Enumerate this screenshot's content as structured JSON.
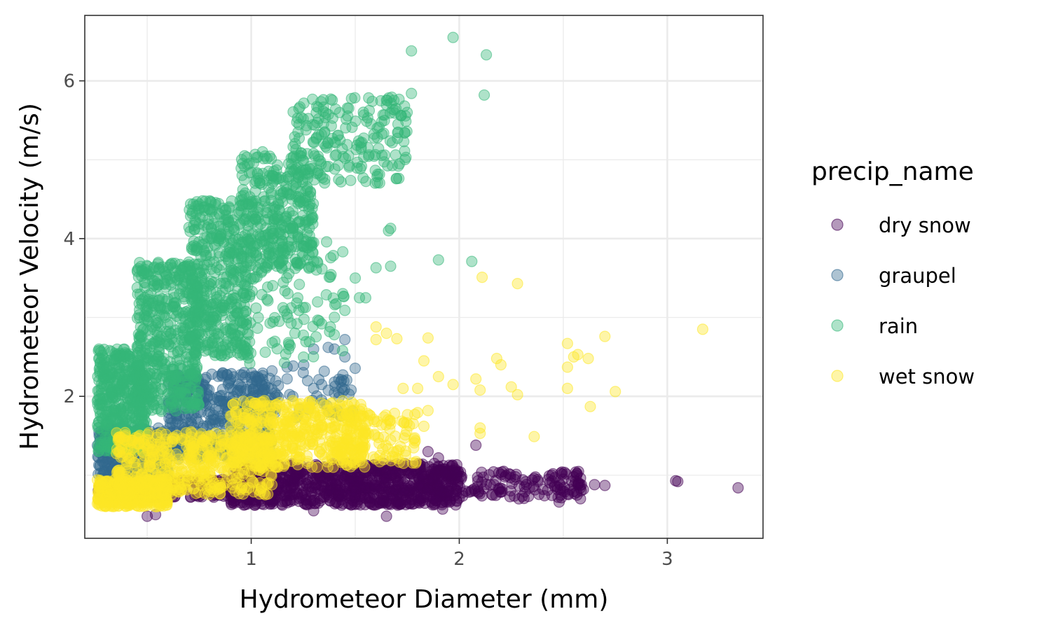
{
  "chart_data": {
    "type": "scatter",
    "title": "",
    "xlabel": "Hydrometeor Diameter (mm)",
    "ylabel": "Hydrometeor Velocity (m/s)",
    "xlim": [
      0.2,
      3.46
    ],
    "ylim": [
      0.2,
      6.83
    ],
    "x_ticks": [
      1,
      2,
      3
    ],
    "x_tick_labels": [
      "1",
      "2",
      "3"
    ],
    "y_ticks": [
      2,
      4,
      6
    ],
    "y_tick_labels": [
      "2",
      "4",
      "6"
    ],
    "grid": true,
    "legend_title": "precip_name",
    "legend_position": "right",
    "point_alpha": 0.4,
    "series": [
      {
        "name": "dry snow",
        "color": "#440154",
        "regions": [
          {
            "x_range": [
              0.26,
              1.1
            ],
            "y_range": [
              0.72,
              0.95
            ],
            "n": 260
          },
          {
            "x_range": [
              0.9,
              2.0
            ],
            "y_range": [
              0.62,
              1.15
            ],
            "n": 900
          },
          {
            "x_range": [
              1.8,
              2.6
            ],
            "y_range": [
              0.7,
              1.05
            ],
            "n": 160
          }
        ],
        "points": [
          {
            "x": 0.5,
            "y": 0.48
          },
          {
            "x": 0.54,
            "y": 0.5
          },
          {
            "x": 1.3,
            "y": 0.55
          },
          {
            "x": 1.65,
            "y": 0.48
          },
          {
            "x": 1.85,
            "y": 1.3
          },
          {
            "x": 1.9,
            "y": 1.22
          },
          {
            "x": 1.92,
            "y": 0.57
          },
          {
            "x": 2.08,
            "y": 1.38
          },
          {
            "x": 2.5,
            "y": 0.95
          },
          {
            "x": 2.48,
            "y": 0.66
          },
          {
            "x": 2.55,
            "y": 0.98
          },
          {
            "x": 2.57,
            "y": 0.88
          },
          {
            "x": 2.65,
            "y": 0.88
          },
          {
            "x": 2.7,
            "y": 0.87
          },
          {
            "x": 3.05,
            "y": 0.92
          },
          {
            "x": 3.04,
            "y": 0.93
          },
          {
            "x": 3.34,
            "y": 0.84
          },
          {
            "x": 2.36,
            "y": 0.96
          }
        ]
      },
      {
        "name": "graupel",
        "color": "#31688e",
        "regions": [
          {
            "x_range": [
              0.26,
              0.6
            ],
            "y_range": [
              0.95,
              1.6
            ],
            "n": 320
          },
          {
            "x_range": [
              0.6,
              1.1
            ],
            "y_range": [
              1.2,
              2.3
            ],
            "n": 420
          },
          {
            "x_range": [
              1.0,
              1.5
            ],
            "y_range": [
              1.7,
              2.4
            ],
            "n": 60
          }
        ],
        "points": [
          {
            "x": 1.3,
            "y": 2.6
          },
          {
            "x": 1.37,
            "y": 2.62
          },
          {
            "x": 1.4,
            "y": 2.6
          },
          {
            "x": 1.45,
            "y": 2.72
          },
          {
            "x": 1.45,
            "y": 2.5
          },
          {
            "x": 1.3,
            "y": 2.1
          },
          {
            "x": 1.4,
            "y": 2.18
          },
          {
            "x": 1.42,
            "y": 2.05
          },
          {
            "x": 1.48,
            "y": 2.08
          },
          {
            "x": 1.2,
            "y": 2.0
          },
          {
            "x": 1.25,
            "y": 2.3
          }
        ]
      },
      {
        "name": "rain",
        "color": "#35b779",
        "regions": [
          {
            "x_range": [
              0.26,
              0.5
            ],
            "y_range": [
              1.3,
              2.6
            ],
            "n": 420
          },
          {
            "x_range": [
              0.45,
              0.75
            ],
            "y_range": [
              1.8,
              3.7
            ],
            "n": 480
          },
          {
            "x_range": [
              0.7,
              1.0
            ],
            "y_range": [
              2.5,
              4.5
            ],
            "n": 420
          },
          {
            "x_range": [
              0.95,
              1.3
            ],
            "y_range": [
              3.6,
              5.1
            ],
            "n": 320
          },
          {
            "x_range": [
              1.2,
              1.75
            ],
            "y_range": [
              4.7,
              5.8
            ],
            "n": 200
          },
          {
            "x_range": [
              0.9,
              1.45
            ],
            "y_range": [
              2.4,
              4.0
            ],
            "n": 130
          }
        ],
        "points": [
          {
            "x": 1.97,
            "y": 6.55
          },
          {
            "x": 1.77,
            "y": 6.38
          },
          {
            "x": 2.13,
            "y": 6.33
          },
          {
            "x": 2.12,
            "y": 5.82
          },
          {
            "x": 1.77,
            "y": 5.84
          },
          {
            "x": 1.67,
            "y": 4.13
          },
          {
            "x": 1.66,
            "y": 4.1
          },
          {
            "x": 1.67,
            "y": 3.65
          },
          {
            "x": 1.6,
            "y": 3.63
          },
          {
            "x": 1.9,
            "y": 3.73
          },
          {
            "x": 2.06,
            "y": 3.71
          },
          {
            "x": 1.52,
            "y": 3.25
          },
          {
            "x": 1.45,
            "y": 3.09
          },
          {
            "x": 1.38,
            "y": 2.88
          },
          {
            "x": 1.22,
            "y": 2.92
          },
          {
            "x": 1.18,
            "y": 2.6
          },
          {
            "x": 1.5,
            "y": 3.5
          },
          {
            "x": 1.55,
            "y": 3.25
          }
        ]
      },
      {
        "name": "wet snow",
        "color": "#fde725",
        "regions": [
          {
            "x_range": [
              0.26,
              0.6
            ],
            "y_range": [
              0.6,
              0.95
            ],
            "n": 300
          },
          {
            "x_range": [
              0.35,
              1.1
            ],
            "y_range": [
              0.75,
              1.55
            ],
            "n": 500
          },
          {
            "x_range": [
              0.9,
              1.55
            ],
            "y_range": [
              1.1,
              1.95
            ],
            "n": 420
          },
          {
            "x_range": [
              1.4,
              1.8
            ],
            "y_range": [
              1.15,
              1.8
            ],
            "n": 120
          }
        ],
        "points": [
          {
            "x": 2.11,
            "y": 3.51
          },
          {
            "x": 2.28,
            "y": 3.43
          },
          {
            "x": 1.6,
            "y": 2.88
          },
          {
            "x": 1.65,
            "y": 2.8
          },
          {
            "x": 1.6,
            "y": 2.72
          },
          {
            "x": 1.7,
            "y": 2.73
          },
          {
            "x": 1.85,
            "y": 2.74
          },
          {
            "x": 1.83,
            "y": 2.45
          },
          {
            "x": 1.73,
            "y": 2.1
          },
          {
            "x": 1.8,
            "y": 2.1
          },
          {
            "x": 1.9,
            "y": 2.25
          },
          {
            "x": 1.97,
            "y": 2.15
          },
          {
            "x": 2.08,
            "y": 2.22
          },
          {
            "x": 2.1,
            "y": 2.08
          },
          {
            "x": 2.18,
            "y": 2.48
          },
          {
            "x": 2.2,
            "y": 2.4
          },
          {
            "x": 2.25,
            "y": 2.12
          },
          {
            "x": 2.28,
            "y": 2.02
          },
          {
            "x": 2.52,
            "y": 2.67
          },
          {
            "x": 2.55,
            "y": 2.5
          },
          {
            "x": 2.57,
            "y": 2.53
          },
          {
            "x": 2.52,
            "y": 2.37
          },
          {
            "x": 2.62,
            "y": 2.48
          },
          {
            "x": 2.7,
            "y": 2.76
          },
          {
            "x": 2.52,
            "y": 2.1
          },
          {
            "x": 2.75,
            "y": 2.06
          },
          {
            "x": 2.63,
            "y": 1.87
          },
          {
            "x": 3.17,
            "y": 2.85
          },
          {
            "x": 2.1,
            "y": 1.6
          },
          {
            "x": 2.1,
            "y": 1.53
          },
          {
            "x": 2.36,
            "y": 1.49
          },
          {
            "x": 1.83,
            "y": 1.62
          },
          {
            "x": 1.85,
            "y": 1.82
          },
          {
            "x": 1.67,
            "y": 1.65
          }
        ]
      }
    ]
  }
}
